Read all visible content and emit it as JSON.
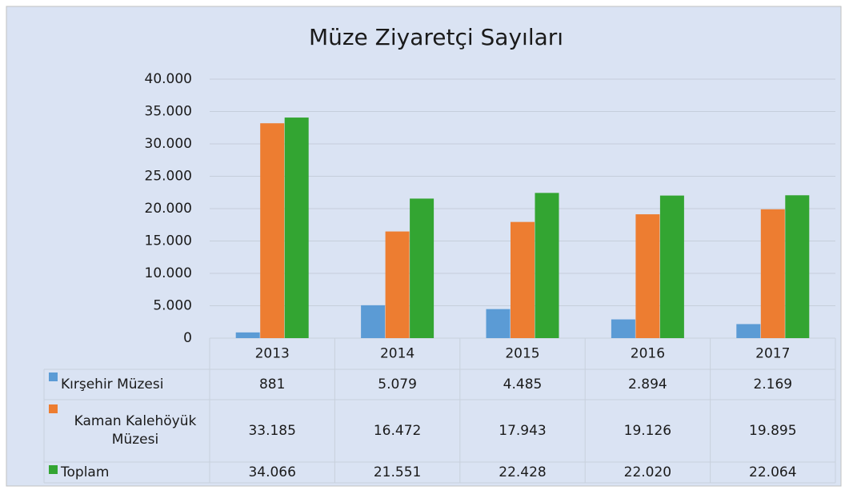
{
  "chart_data": {
    "type": "bar",
    "title": "Müze Ziyaretçi Sayıları",
    "categories": [
      "2013",
      "2014",
      "2015",
      "2016",
      "2017"
    ],
    "series": [
      {
        "name": "Kırşehir Müzesi",
        "color": "#5b9bd5",
        "values": [
          881,
          5079,
          4485,
          2894,
          2169
        ],
        "value_labels": [
          "881",
          "5.079",
          "4.485",
          "2.894",
          "2.169"
        ]
      },
      {
        "name": "Kaman Kalehöyük Müzesi",
        "color": "#ed7d31",
        "values": [
          33185,
          16472,
          17943,
          19126,
          19895
        ],
        "value_labels": [
          "33.185",
          "16.472",
          "17.943",
          "19.126",
          "19.895"
        ]
      },
      {
        "name": "Toplam",
        "color": "#33a532",
        "values": [
          34066,
          21551,
          22428,
          22020,
          22064
        ],
        "value_labels": [
          "34.066",
          "21.551",
          "22.428",
          "22.020",
          "22.064"
        ]
      }
    ],
    "ylim": [
      0,
      40000
    ],
    "yticks": [
      0,
      {
        "value": 5000,
        "label": "5.000"
      },
      {
        "value": 10000,
        "label": "10.000"
      },
      {
        "value": 15000,
        "label": "15.000"
      },
      {
        "value": 20000,
        "label": "20.000"
      },
      {
        "value": 25000,
        "label": "25.000"
      },
      {
        "value": 30000,
        "label": "30.000"
      },
      {
        "value": 35000,
        "label": "35.000"
      },
      {
        "value": 40000,
        "label": "40.000"
      }
    ],
    "grid": true
  }
}
